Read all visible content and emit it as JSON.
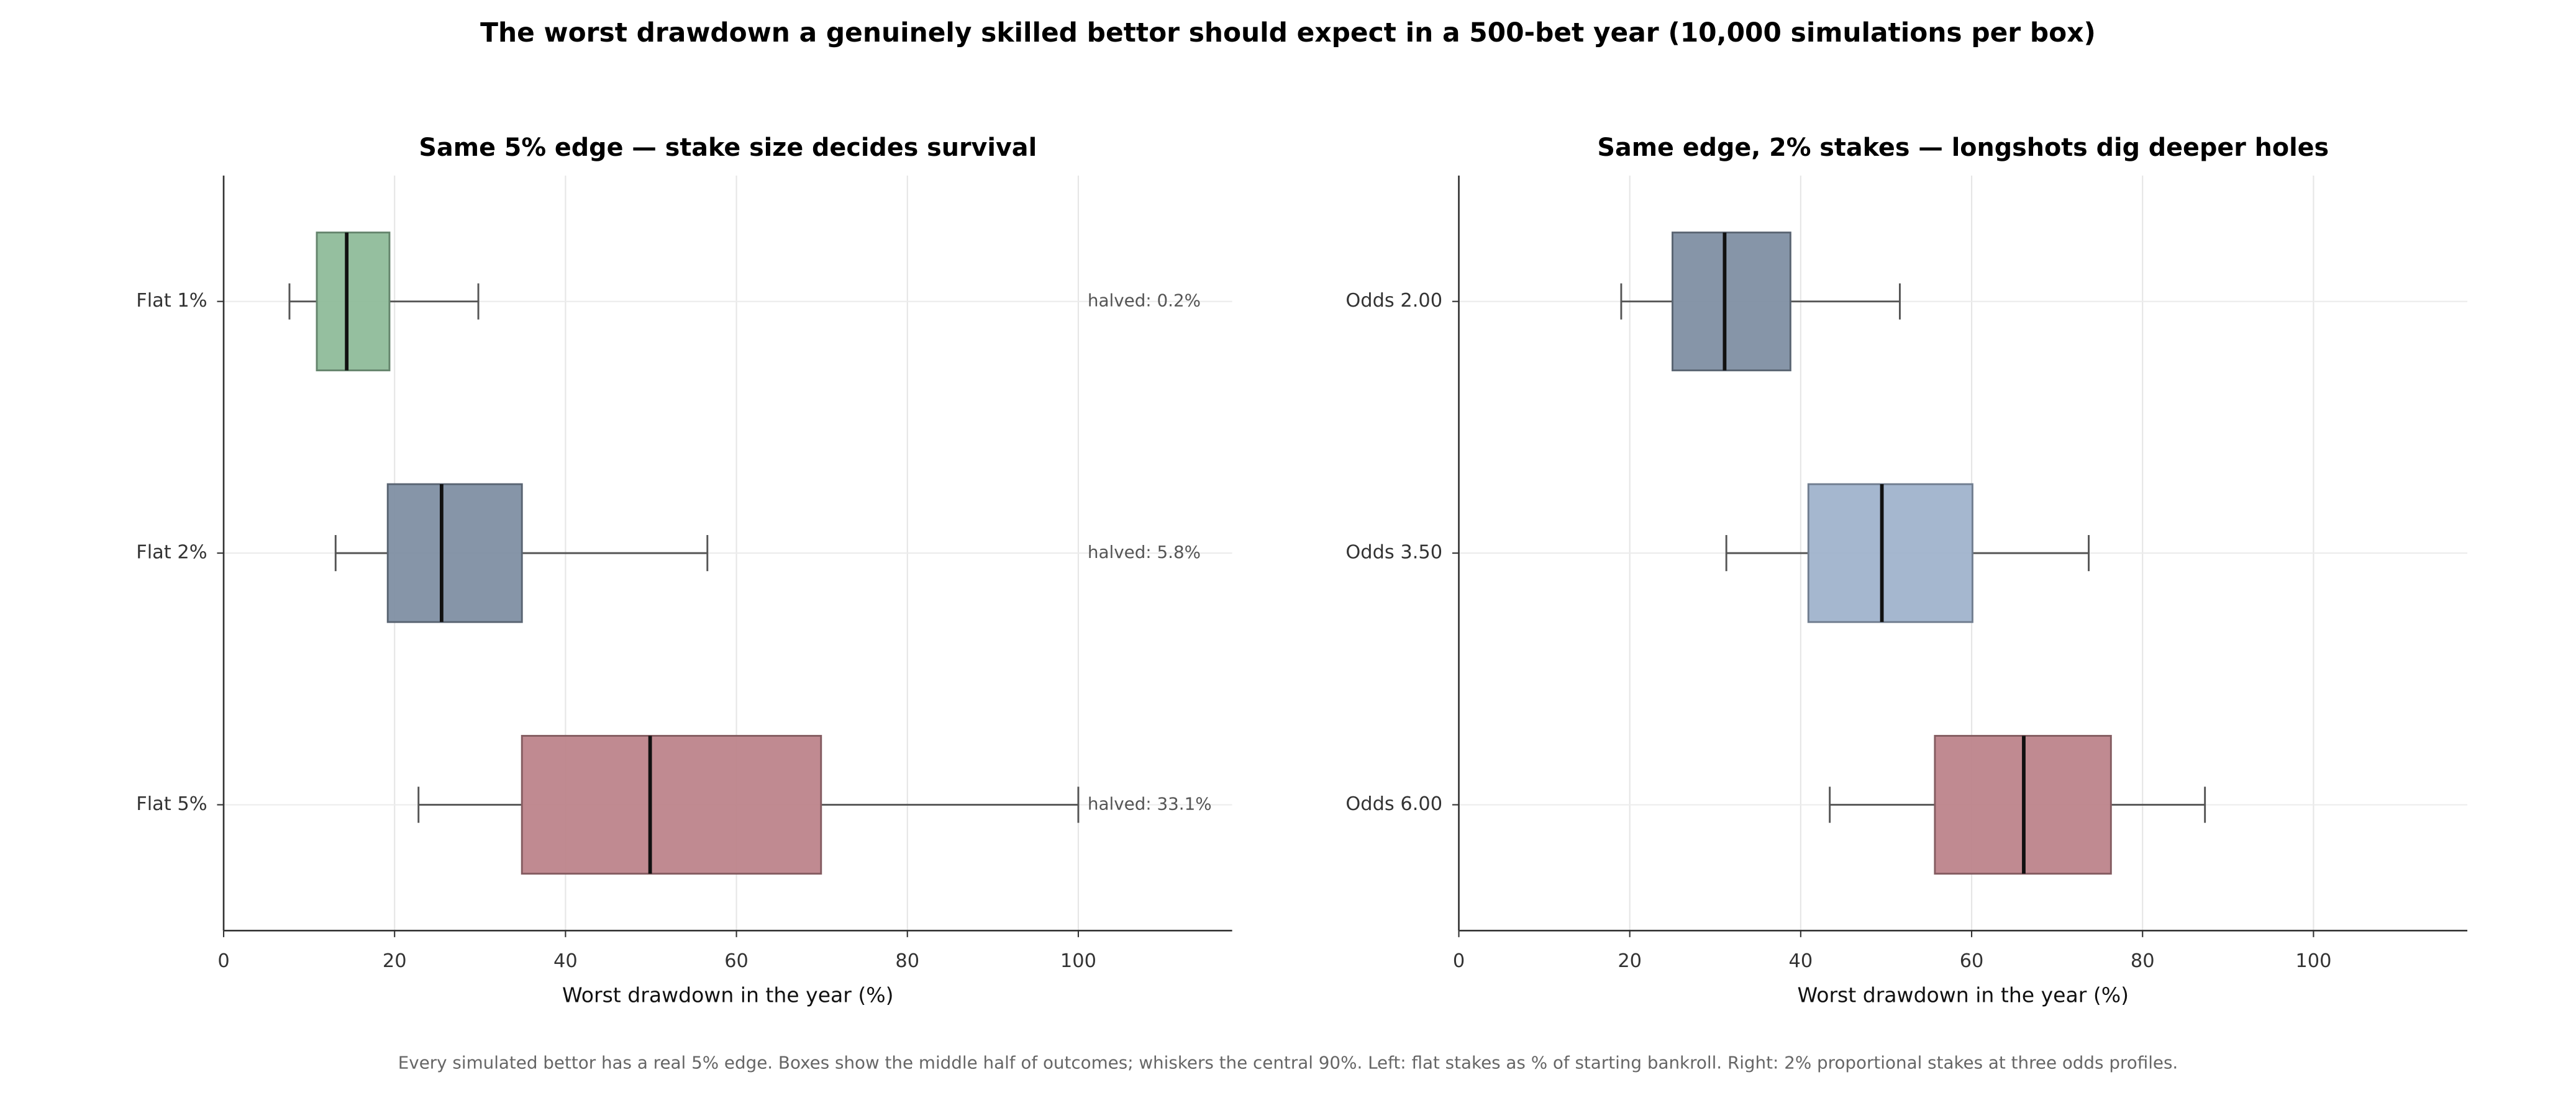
{
  "title": "The worst drawdown a genuinely skilled bettor should expect in a 500-bet year (10,000 simulations per box)",
  "caption": "Every simulated bettor has a real 5% edge. Boxes show the middle half of outcomes; whiskers the central 90%. Left: flat stakes as % of starting bankroll. Right: 2% proportional stakes at three odds profiles.",
  "chart_data": [
    {
      "type": "box",
      "title": "Same 5% edge — stake size decides survival",
      "xlabel": "Worst drawdown in the year (%)",
      "categories": [
        "Flat 1%",
        "Flat 2%",
        "Flat 5%"
      ],
      "whislo": [
        7.7,
        13.1,
        22.8
      ],
      "q1": [
        10.9,
        19.2,
        34.9
      ],
      "med": [
        14.4,
        25.5,
        49.9
      ],
      "q3": [
        19.4,
        34.9,
        69.9
      ],
      "whishi": [
        29.8,
        56.6,
        100
      ],
      "colors": [
        "#8fbc9a",
        "#7f8fa3",
        "#bd848b"
      ],
      "annotations": [
        "halved: 0.2%",
        "halved: 5.8%",
        "halved: 33.1%"
      ],
      "xlim": [
        0,
        118
      ],
      "xticks": [
        0,
        20,
        40,
        60,
        80,
        100
      ],
      "grid": true
    },
    {
      "type": "box",
      "title": "Same edge, 2% stakes — longshots dig deeper holes",
      "xlabel": "Worst drawdown in the year (%)",
      "categories": [
        "Odds 2.00",
        "Odds 3.50",
        "Odds 6.00"
      ],
      "whislo": [
        19.0,
        31.3,
        43.4
      ],
      "q1": [
        25.0,
        40.9,
        55.7
      ],
      "med": [
        31.1,
        49.5,
        66.1
      ],
      "q3": [
        38.8,
        60.1,
        76.3
      ],
      "whishi": [
        51.6,
        73.7,
        87.3
      ],
      "colors": [
        "#7f8fa3",
        "#a0b3cc",
        "#bd848b"
      ],
      "xlim": [
        0,
        118
      ],
      "xticks": [
        0,
        20,
        40,
        60,
        80,
        100
      ],
      "grid": true
    }
  ]
}
